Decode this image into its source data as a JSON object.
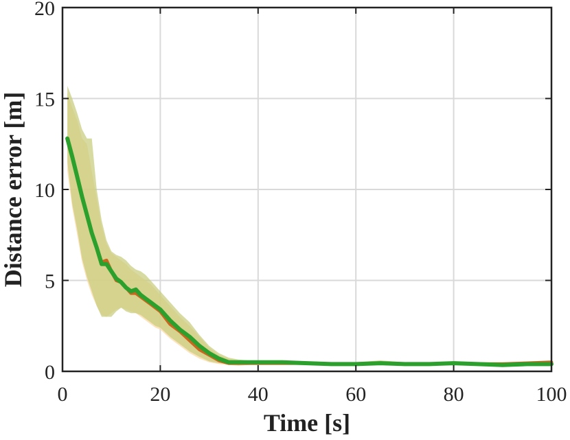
{
  "chart_data": {
    "type": "line",
    "xlabel": "Time [s]",
    "ylabel": "Distance error [m]",
    "xlim": [
      0,
      100
    ],
    "ylim": [
      0,
      20
    ],
    "xticks": [
      0,
      20,
      40,
      60,
      80,
      100
    ],
    "yticks": [
      0,
      5,
      10,
      15,
      20
    ],
    "grid": true,
    "legend": "none",
    "bands": [
      {
        "color": "#f9d9a6",
        "x": [
          1,
          2,
          3,
          4,
          5,
          6,
          7,
          8,
          9,
          10,
          11,
          12,
          13,
          14,
          15,
          16,
          17,
          18,
          19,
          20,
          22,
          24,
          26,
          28,
          30,
          32,
          34,
          36,
          38,
          40,
          45,
          50,
          55,
          60,
          65,
          70,
          75,
          80,
          85,
          90,
          95,
          100
        ],
        "upper": [
          15.3,
          14.5,
          13.8,
          12.8,
          12.5,
          11.0,
          9.5,
          8.0,
          7.0,
          6.5,
          6.3,
          6.1,
          5.9,
          5.6,
          5.4,
          5.2,
          5.0,
          4.8,
          4.5,
          4.2,
          3.6,
          3.0,
          2.5,
          1.9,
          1.3,
          0.9,
          0.7,
          0.6,
          0.6,
          0.6,
          0.55,
          0.55,
          0.5,
          0.5,
          0.6,
          0.5,
          0.5,
          0.55,
          0.5,
          0.5,
          0.55,
          0.6
        ],
        "lower": [
          11.0,
          9.0,
          7.5,
          6.0,
          5.0,
          4.2,
          3.6,
          3.1,
          3.0,
          3.2,
          3.4,
          3.5,
          3.4,
          3.3,
          3.2,
          3.0,
          2.8,
          2.6,
          2.4,
          2.3,
          1.8,
          1.4,
          1.0,
          0.7,
          0.5,
          0.4,
          0.35,
          0.3,
          0.35,
          0.4,
          0.4,
          0.35,
          0.3,
          0.35,
          0.35,
          0.3,
          0.3,
          0.35,
          0.3,
          0.3,
          0.3,
          0.35
        ]
      },
      {
        "color": "#c6cc7a",
        "x": [
          1,
          2,
          3,
          4,
          5,
          6,
          7,
          8,
          9,
          10,
          11,
          12,
          13,
          14,
          15,
          16,
          17,
          18,
          19,
          20,
          22,
          24,
          26,
          28,
          30,
          32,
          34,
          36,
          38,
          40,
          45,
          50,
          55,
          60,
          65,
          70,
          75,
          80,
          85,
          90,
          95,
          100
        ],
        "upper": [
          15.7,
          15.0,
          14.2,
          13.3,
          12.8,
          12.8,
          10.0,
          8.3,
          7.2,
          6.6,
          6.4,
          6.3,
          6.1,
          5.8,
          5.6,
          5.5,
          5.3,
          5.0,
          4.7,
          4.4,
          3.8,
          3.2,
          2.7,
          2.0,
          1.4,
          1.0,
          0.75,
          0.65,
          0.6,
          0.6,
          0.55,
          0.55,
          0.5,
          0.5,
          0.6,
          0.5,
          0.5,
          0.55,
          0.5,
          0.5,
          0.5,
          0.55
        ],
        "lower": [
          11.5,
          9.2,
          7.8,
          6.2,
          5.2,
          4.4,
          3.6,
          3.0,
          3.0,
          3.0,
          3.3,
          3.5,
          3.3,
          3.2,
          3.2,
          3.1,
          2.9,
          2.7,
          2.5,
          2.4,
          1.9,
          1.5,
          1.1,
          0.8,
          0.55,
          0.45,
          0.4,
          0.35,
          0.4,
          0.4,
          0.4,
          0.4,
          0.35,
          0.35,
          0.35,
          0.35,
          0.35,
          0.35,
          0.35,
          0.3,
          0.3,
          0.35
        ]
      }
    ],
    "series": [
      {
        "color": "#c9661f",
        "x": [
          1,
          2,
          3,
          4,
          5,
          6,
          7,
          8,
          9,
          10,
          11,
          12,
          13,
          14,
          15,
          16,
          17,
          18,
          19,
          20,
          22,
          24,
          26,
          28,
          30,
          32,
          34,
          36,
          38,
          40,
          45,
          50,
          55,
          60,
          65,
          70,
          75,
          80,
          85,
          90,
          95,
          100
        ],
        "y": [
          12.8,
          11.8,
          10.7,
          9.6,
          8.6,
          7.6,
          6.8,
          6.0,
          6.1,
          5.5,
          5.0,
          4.9,
          4.6,
          4.3,
          4.3,
          4.1,
          3.9,
          3.7,
          3.5,
          3.3,
          2.6,
          2.2,
          1.7,
          1.2,
          0.9,
          0.6,
          0.45,
          0.45,
          0.45,
          0.45,
          0.45,
          0.45,
          0.4,
          0.4,
          0.45,
          0.4,
          0.4,
          0.45,
          0.4,
          0.4,
          0.45,
          0.5
        ]
      },
      {
        "color": "#2ca02c",
        "x": [
          1,
          2,
          3,
          4,
          5,
          6,
          7,
          8,
          9,
          10,
          11,
          12,
          13,
          14,
          15,
          16,
          17,
          18,
          19,
          20,
          22,
          24,
          26,
          28,
          30,
          32,
          34,
          36,
          38,
          40,
          45,
          50,
          55,
          60,
          65,
          70,
          75,
          80,
          85,
          90,
          95,
          100
        ],
        "y": [
          12.8,
          11.8,
          10.7,
          9.6,
          8.6,
          7.6,
          6.8,
          5.9,
          5.9,
          5.5,
          5.1,
          4.9,
          4.6,
          4.4,
          4.5,
          4.2,
          4.0,
          3.8,
          3.6,
          3.4,
          2.8,
          2.3,
          1.9,
          1.4,
          1.0,
          0.7,
          0.5,
          0.5,
          0.5,
          0.5,
          0.5,
          0.45,
          0.4,
          0.4,
          0.45,
          0.4,
          0.4,
          0.45,
          0.4,
          0.35,
          0.4,
          0.4
        ]
      }
    ]
  }
}
